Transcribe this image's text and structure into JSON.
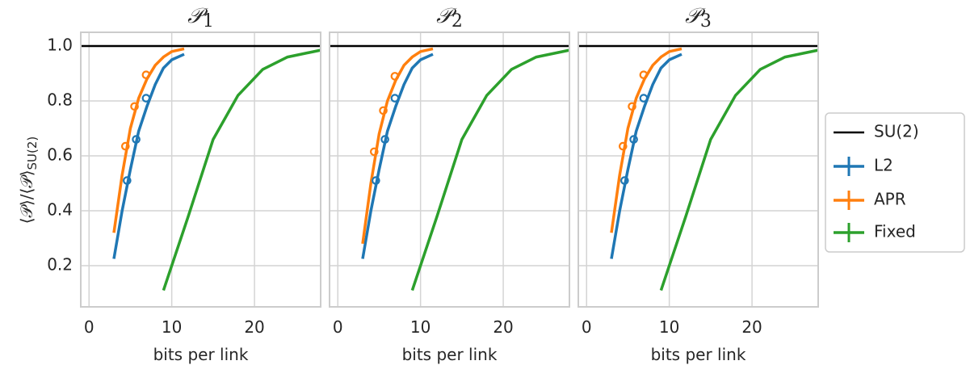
{
  "chart_data": {
    "type": "line",
    "panels": [
      {
        "title": "𝒫1",
        "series": [
          {
            "name": "L2",
            "color": "#1f77b4",
            "x": [
              3,
              4,
              5,
              6,
              7,
              8,
              9,
              10,
              11.5
            ],
            "y": [
              0.225,
              0.4,
              0.55,
              0.69,
              0.78,
              0.86,
              0.92,
              0.95,
              0.97
            ]
          },
          {
            "name": "APR",
            "color": "#ff7f0e",
            "x": [
              3,
              4,
              5,
              6,
              7,
              8,
              9,
              10,
              11.5
            ],
            "y": [
              0.32,
              0.53,
              0.7,
              0.81,
              0.88,
              0.93,
              0.96,
              0.98,
              0.99
            ]
          },
          {
            "name": "Fixed",
            "color": "#2ca02c",
            "x": [
              9,
              12,
              15,
              18,
              21,
              24,
              28
            ],
            "y": [
              0.11,
              0.38,
              0.66,
              0.82,
              0.915,
              0.96,
              0.985
            ]
          }
        ],
        "markers": [
          {
            "series": "L2",
            "x": [
              4.6,
              5.7,
              6.9
            ],
            "y": [
              0.51,
              0.66,
              0.81
            ]
          },
          {
            "series": "APR",
            "x": [
              4.4,
              5.5,
              6.9
            ],
            "y": [
              0.635,
              0.78,
              0.895
            ]
          }
        ]
      },
      {
        "title": "𝒫2",
        "series": [
          {
            "name": "L2",
            "color": "#1f77b4",
            "x": [
              3,
              4,
              5,
              6,
              7,
              8,
              9,
              10,
              11.5
            ],
            "y": [
              0.225,
              0.4,
              0.55,
              0.69,
              0.78,
              0.86,
              0.92,
              0.95,
              0.97
            ]
          },
          {
            "name": "APR",
            "color": "#ff7f0e",
            "x": [
              3,
              4,
              5,
              6,
              7,
              8,
              9,
              10,
              11.5
            ],
            "y": [
              0.28,
              0.5,
              0.68,
              0.8,
              0.875,
              0.93,
              0.96,
              0.98,
              0.99
            ]
          },
          {
            "name": "Fixed",
            "color": "#2ca02c",
            "x": [
              9,
              12,
              15,
              18,
              21,
              24,
              28
            ],
            "y": [
              0.11,
              0.38,
              0.66,
              0.82,
              0.915,
              0.96,
              0.985
            ]
          }
        ],
        "markers": [
          {
            "series": "L2",
            "x": [
              4.6,
              5.7,
              6.9
            ],
            "y": [
              0.51,
              0.66,
              0.81
            ]
          },
          {
            "series": "APR",
            "x": [
              4.4,
              5.5,
              6.9
            ],
            "y": [
              0.615,
              0.765,
              0.89
            ]
          }
        ]
      },
      {
        "title": "𝒫3",
        "series": [
          {
            "name": "L2",
            "color": "#1f77b4",
            "x": [
              3,
              4,
              5,
              6,
              7,
              8,
              9,
              10,
              11.5
            ],
            "y": [
              0.225,
              0.4,
              0.55,
              0.69,
              0.78,
              0.86,
              0.92,
              0.95,
              0.97
            ]
          },
          {
            "name": "APR",
            "color": "#ff7f0e",
            "x": [
              3,
              4,
              5,
              6,
              7,
              8,
              9,
              10,
              11.5
            ],
            "y": [
              0.32,
              0.53,
              0.7,
              0.81,
              0.88,
              0.93,
              0.96,
              0.98,
              0.99
            ]
          },
          {
            "name": "Fixed",
            "color": "#2ca02c",
            "x": [
              9,
              12,
              15,
              18,
              21,
              24,
              28
            ],
            "y": [
              0.11,
              0.38,
              0.66,
              0.82,
              0.915,
              0.96,
              0.985
            ]
          }
        ],
        "markers": [
          {
            "series": "L2",
            "x": [
              4.6,
              5.7,
              6.9
            ],
            "y": [
              0.51,
              0.66,
              0.81
            ]
          },
          {
            "series": "APR",
            "x": [
              4.4,
              5.5,
              6.9
            ],
            "y": [
              0.635,
              0.78,
              0.895
            ]
          }
        ]
      }
    ],
    "reference_line": {
      "name": "SU(2)",
      "y": 1.0,
      "color": "#000000"
    },
    "xlabel": "bits per link",
    "ylabel": "⟨𝒫⟩/⟨𝒫⟩SU(2)",
    "xlim": [
      -1,
      28
    ],
    "ylim": [
      0.05,
      1.05
    ],
    "xticks": [
      0,
      10,
      20
    ],
    "xtick_labels": [
      "0",
      "10",
      "20"
    ],
    "yticks": [
      0.2,
      0.4,
      0.6,
      0.8,
      1.0
    ],
    "ytick_labels": [
      "0.2",
      "0.4",
      "0.6",
      "0.8",
      "1.0"
    ],
    "grid": true,
    "legend": {
      "placement": "right",
      "entries": [
        {
          "label": "SU(2)",
          "color": "#000000",
          "style": "line"
        },
        {
          "label": "L2",
          "color": "#1f77b4",
          "style": "errorbar"
        },
        {
          "label": "APR",
          "color": "#ff7f0e",
          "style": "errorbar"
        },
        {
          "label": "Fixed",
          "color": "#2ca02c",
          "style": "errorbar"
        }
      ]
    }
  }
}
